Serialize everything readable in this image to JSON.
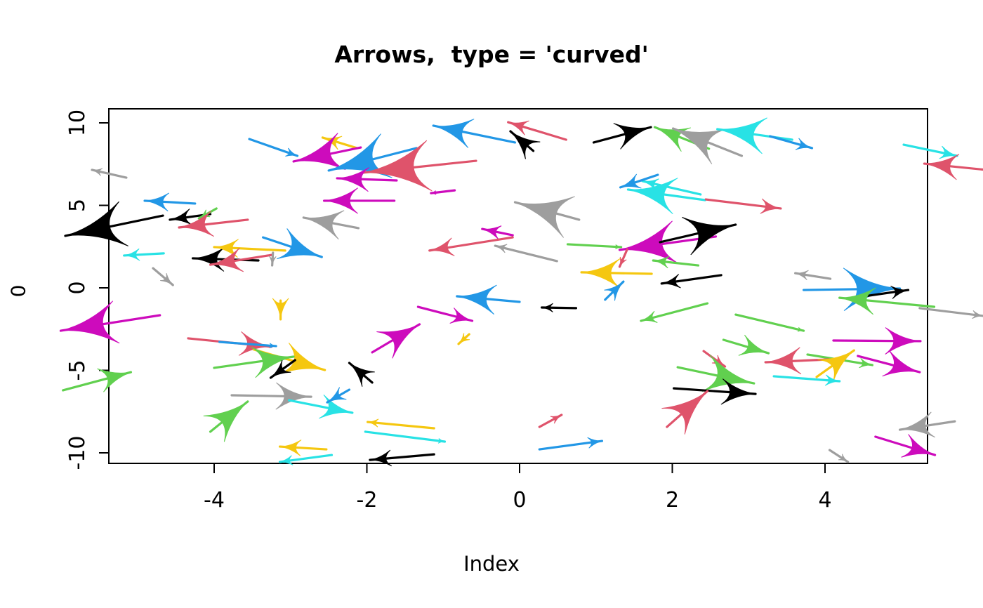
{
  "title": "Arrows,  type = 'curved'",
  "xlabel": "Index",
  "ylabel": "0",
  "chart_data": {
    "type": "scatter",
    "subtype": "arrow-field (R shape::Arrows, curved arrowheads)",
    "title": "Arrows,  type = 'curved'",
    "xlabel": "Index",
    "ylabel": "0",
    "xlim": [
      -5.4,
      5.35
    ],
    "ylim": [
      -10.85,
      10.85
    ],
    "xticks": [
      -4,
      -2,
      0,
      2,
      4
    ],
    "yticks": [
      -10,
      -5,
      0,
      5,
      10
    ],
    "grid": false,
    "legend": "none",
    "palette": {
      "black": "#000000",
      "red": "#DF536B",
      "green": "#61D04F",
      "blue": "#2297E6",
      "cyan": "#28E2E5",
      "magenta": "#CD0BBC",
      "yellow": "#F5C710",
      "gray": "#9E9E9E"
    },
    "arrow_format": [
      "color",
      "x0",
      "y0",
      "x1(tip)",
      "y1(tip)",
      "head_px"
    ],
    "arrows": [
      [
        "gray",
        -5.15,
        6.68,
        -5.6,
        7.15,
        14
      ],
      [
        "blue",
        -3.54,
        9.02,
        -2.91,
        8.0,
        16
      ],
      [
        "yellow",
        -2.13,
        8.47,
        -2.58,
        9.11,
        26
      ],
      [
        "magenta",
        -2.08,
        8.51,
        -2.96,
        7.66,
        70
      ],
      [
        "blue",
        -1.35,
        8.47,
        -2.5,
        7.11,
        85
      ],
      [
        "red",
        -0.57,
        7.7,
        -2.05,
        6.98,
        95
      ],
      [
        "magenta",
        -1.61,
        6.51,
        -2.39,
        6.64,
        45
      ],
      [
        "magenta",
        -1.64,
        5.28,
        -2.56,
        5.28,
        48
      ],
      [
        "magenta",
        -0.85,
        5.91,
        -1.16,
        5.74,
        7
      ],
      [
        "blue",
        -4.25,
        5.11,
        -4.91,
        5.28,
        34
      ],
      [
        "black",
        -4.67,
        4.38,
        -5.95,
        3.15,
        85
      ],
      [
        "black",
        -4.05,
        4.47,
        -4.58,
        4.13,
        30
      ],
      [
        "green",
        -3.97,
        4.81,
        -4.2,
        4.21,
        15
      ],
      [
        "red",
        -3.56,
        4.13,
        -4.46,
        3.66,
        48
      ],
      [
        "cyan",
        -4.66,
        2.09,
        -5.18,
        1.96,
        22
      ],
      [
        "gray",
        -4.8,
        1.19,
        -4.54,
        0.17,
        18
      ],
      [
        "black",
        -3.42,
        1.66,
        -4.28,
        1.79,
        45
      ],
      [
        "yellow",
        -3.07,
        2.26,
        -4.0,
        2.47,
        34
      ],
      [
        "red",
        -3.24,
        2.0,
        -4.05,
        1.4,
        45
      ],
      [
        "gray",
        -3.23,
        2.13,
        -3.24,
        1.36,
        13
      ],
      [
        "blue",
        -3.36,
        3.06,
        -2.59,
        1.87,
        60
      ],
      [
        "gray",
        -2.11,
        3.62,
        -2.83,
        4.26,
        55
      ],
      [
        "blue",
        -0.06,
        8.81,
        -1.13,
        9.83,
        55
      ],
      [
        "red",
        0.61,
        8.98,
        -0.15,
        10.04,
        28
      ],
      [
        "black",
        0.18,
        8.3,
        -0.12,
        9.49,
        42
      ],
      [
        "gray",
        0.78,
        4.13,
        -0.06,
        5.19,
        80
      ],
      [
        "magenta",
        -0.09,
        3.19,
        -0.49,
        3.57,
        26
      ],
      [
        "red",
        -0.09,
        3.06,
        -1.18,
        2.26,
        34
      ],
      [
        "gray",
        0.49,
        1.62,
        -0.32,
        2.55,
        16
      ],
      [
        "green",
        0.63,
        2.64,
        1.33,
        2.47,
        8
      ],
      [
        "magenta",
        2.57,
        3.11,
        1.31,
        2.3,
        80
      ],
      [
        "black",
        1.84,
        2.77,
        2.83,
        3.83,
        72
      ],
      [
        "red",
        1.41,
        2.34,
        1.31,
        1.28,
        13
      ],
      [
        "yellow",
        1.73,
        0.85,
        0.81,
        0.94,
        55
      ],
      [
        "green",
        2.34,
        1.36,
        1.75,
        1.66,
        22
      ],
      [
        "black",
        2.64,
        0.77,
        1.86,
        0.26,
        26
      ],
      [
        "black",
        0.97,
        8.81,
        1.72,
        9.74,
        50
      ],
      [
        "green",
        2.48,
        8.43,
        1.77,
        9.74,
        48
      ],
      [
        "gray",
        2.91,
        8.0,
        2.01,
        9.66,
        70
      ],
      [
        "cyan",
        3.57,
        8.98,
        2.59,
        9.62,
        68
      ],
      [
        "blue",
        3.28,
        9.19,
        3.83,
        8.47,
        22
      ],
      [
        "cyan",
        5.03,
        8.68,
        5.73,
        8.0,
        24
      ],
      [
        "red",
        6.11,
        7.15,
        5.3,
        7.53,
        48
      ],
      [
        "cyan",
        2.43,
        5.32,
        1.42,
        5.96,
        68
      ],
      [
        "cyan",
        2.37,
        5.66,
        1.61,
        6.47,
        22
      ],
      [
        "blue",
        1.81,
        6.85,
        1.32,
        6.09,
        28
      ],
      [
        "red",
        2.44,
        5.36,
        3.42,
        4.81,
        28
      ],
      [
        "gray",
        4.07,
        0.55,
        3.61,
        0.89,
        18
      ],
      [
        "blue",
        3.72,
        -0.13,
        4.98,
        -0.04,
        80
      ],
      [
        "black",
        4.32,
        -0.64,
        5.09,
        -0.13,
        24
      ],
      [
        "green",
        5.43,
        -1.15,
        4.19,
        -0.6,
        50
      ],
      [
        "gray",
        5.24,
        -1.23,
        6.07,
        -1.7,
        15
      ],
      [
        "magenta",
        4.11,
        -3.19,
        5.25,
        -3.23,
        50
      ],
      [
        "magenta",
        4.43,
        -4.13,
        5.24,
        -5.11,
        50
      ],
      [
        "green",
        3.77,
        -4.04,
        4.62,
        -4.68,
        18
      ],
      [
        "green",
        2.83,
        -1.62,
        3.72,
        -2.6,
        8
      ],
      [
        "green",
        2.67,
        -3.15,
        3.26,
        -3.96,
        40
      ],
      [
        "red",
        2.41,
        -3.83,
        2.69,
        -4.77,
        18
      ],
      [
        "green",
        2.07,
        -4.81,
        3.07,
        -5.79,
        70
      ],
      [
        "black",
        2.02,
        -6.09,
        3.09,
        -6.43,
        48
      ],
      [
        "red",
        1.93,
        -8.43,
        2.46,
        -6.26,
        65
      ],
      [
        "red",
        4.05,
        -4.34,
        3.22,
        -4.51,
        50
      ],
      [
        "yellow",
        3.89,
        -5.4,
        4.38,
        -3.79,
        50
      ],
      [
        "cyan",
        3.33,
        -5.36,
        4.19,
        -5.66,
        20
      ],
      [
        "magenta",
        4.66,
        -9.02,
        5.44,
        -10.13,
        45
      ],
      [
        "gray",
        5.7,
        -8.09,
        4.98,
        -8.6,
        48
      ],
      [
        "gray",
        4.06,
        -9.83,
        4.3,
        -10.55,
        13
      ],
      [
        "blue",
        1.12,
        -0.72,
        1.36,
        0.38,
        28
      ],
      [
        "green",
        2.46,
        -0.94,
        1.59,
        -2.0,
        22
      ],
      [
        "blue",
        0.0,
        -0.85,
        -0.82,
        -0.51,
        55
      ],
      [
        "black",
        0.74,
        -1.23,
        0.29,
        -1.19,
        16
      ],
      [
        "magenta",
        -1.33,
        -1.15,
        -0.62,
        -2.0,
        30
      ],
      [
        "magenta",
        -1.93,
        -3.91,
        -1.31,
        -2.21,
        58
      ],
      [
        "yellow",
        -0.66,
        -2.81,
        -0.8,
        -3.4,
        16
      ],
      [
        "red",
        -4.34,
        -3.06,
        -3.25,
        -3.57,
        45
      ],
      [
        "blue",
        -3.93,
        -3.28,
        -3.19,
        -3.53,
        9
      ],
      [
        "yellow",
        -3.13,
        -0.77,
        -3.13,
        -1.91,
        30
      ],
      [
        "yellow",
        -3.48,
        -3.74,
        -2.55,
        -4.98,
        60
      ],
      [
        "green",
        -4.0,
        -4.85,
        -2.96,
        -4.17,
        58
      ],
      [
        "black",
        -2.94,
        -4.38,
        -3.26,
        -5.45,
        28
      ],
      [
        "black",
        -1.93,
        -5.74,
        -2.23,
        -4.55,
        36
      ],
      [
        "gray",
        -3.77,
        -6.51,
        -2.73,
        -6.6,
        50
      ],
      [
        "cyan",
        -3.02,
        -6.81,
        -2.19,
        -7.57,
        45
      ],
      [
        "blue",
        -2.23,
        -6.17,
        -2.52,
        -6.94,
        26
      ],
      [
        "green",
        -4.05,
        -8.72,
        -3.56,
        -6.89,
        62
      ],
      [
        "yellow",
        -2.53,
        -9.79,
        -3.14,
        -9.62,
        30
      ],
      [
        "cyan",
        -2.46,
        -10.13,
        -3.14,
        -10.55,
        18
      ],
      [
        "black",
        -1.12,
        -10.09,
        -1.96,
        -10.43,
        30
      ],
      [
        "yellow",
        -1.12,
        -8.51,
        -1.99,
        -8.13,
        15
      ],
      [
        "cyan",
        -2.02,
        -8.72,
        -0.98,
        -9.32,
        9
      ],
      [
        "red",
        0.26,
        -8.43,
        0.55,
        -7.7,
        15
      ],
      [
        "blue",
        0.26,
        -9.79,
        1.08,
        -9.28,
        20
      ],
      [
        "magenta",
        -4.71,
        -1.66,
        -6.01,
        -2.6,
        80
      ],
      [
        "green",
        -5.98,
        -6.21,
        -5.09,
        -5.11,
        45
      ]
    ]
  }
}
